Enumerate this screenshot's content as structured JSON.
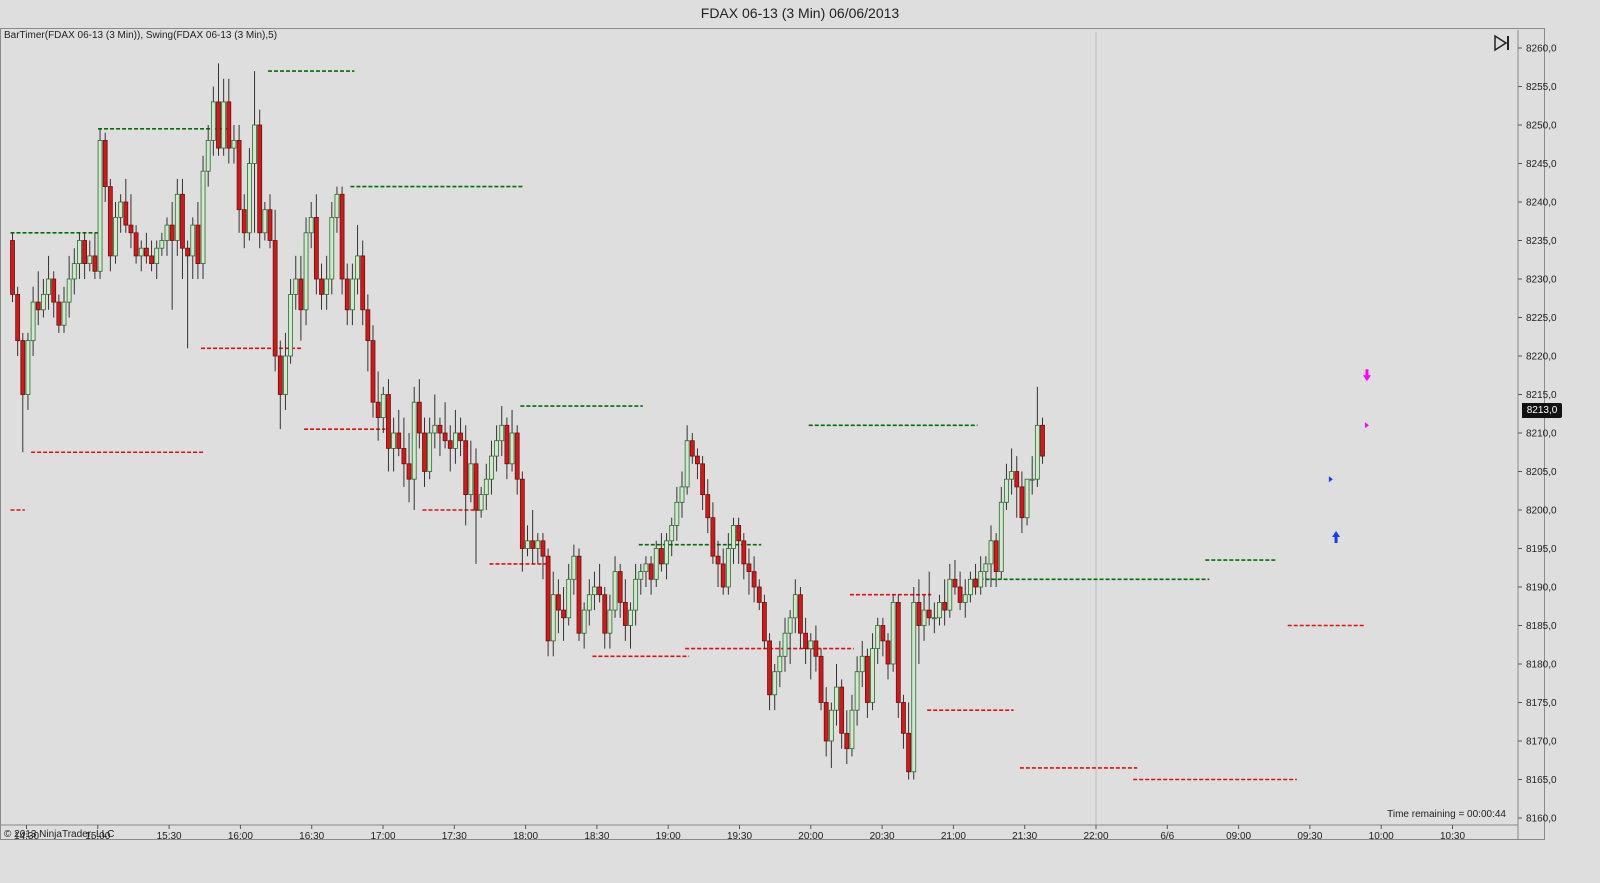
{
  "window": {
    "title": "FDAX 06-13 (3 Min)  06/06/2013"
  },
  "chart": {
    "indicator_label": "BarTimer(FDAX 06-13 (3 Min)), Swing(FDAX 06-13 (3 Min),5)",
    "copyright": "© 2013 NinjaTrader, LLC",
    "time_remaining": "Time remaining = 00:00:44",
    "last_price": "8213,0",
    "scroll_icon": "scroll-to-end-icon"
  },
  "colors": {
    "up_body": "#cfe8cf",
    "down_body": "#c41e1e",
    "wick": "#333333",
    "swing_high": "#007000",
    "swing_low": "#e01010",
    "marker_up": "#1a3cff",
    "marker_down": "#ff00ff"
  },
  "chart_data": {
    "type": "candlestick",
    "title": "FDAX 06-13 (3 Min)  06/06/2013",
    "y_ticks": [
      "8260,0",
      "8255,0",
      "8250,0",
      "8245,0",
      "8240,0",
      "8235,0",
      "8230,0",
      "8225,0",
      "8220,0",
      "8215,0",
      "8210,0",
      "8205,0",
      "8200,0",
      "8195,0",
      "8190,0",
      "8185,0",
      "8180,0",
      "8175,0",
      "8170,0",
      "8165,0",
      "8160,0"
    ],
    "y_values": [
      8260,
      8255,
      8250,
      8245,
      8240,
      8235,
      8230,
      8225,
      8220,
      8215,
      8210,
      8205,
      8200,
      8195,
      8190,
      8185,
      8180,
      8175,
      8170,
      8165,
      8160
    ],
    "ylim": [
      8159.2,
      8262.3
    ],
    "x_ticks": [
      "14:30",
      "15:00",
      "15:30",
      "16:00",
      "16:30",
      "17:00",
      "17:30",
      "18:00",
      "18:30",
      "19:00",
      "19:30",
      "20:00",
      "20:30",
      "21:00",
      "21:30",
      "22:00",
      "6/6",
      "09:00",
      "09:30",
      "10:00",
      "10:30"
    ],
    "swing_highs": [
      {
        "price": 8236.0,
        "from": 0,
        "to": 17
      },
      {
        "price": 8249.5,
        "from": 17,
        "to": 42
      },
      {
        "price": 8257.0,
        "from": 50,
        "to": 66
      },
      {
        "price": 8242.0,
        "from": 66,
        "to": 99
      },
      {
        "price": 8213.5,
        "from": 99,
        "to": 122
      },
      {
        "price": 8195.5,
        "from": 122,
        "to": 145
      },
      {
        "price": 8211.0,
        "from": 155,
        "to": 187
      },
      {
        "price": 8191.0,
        "from": 187,
        "to": 232
      },
      {
        "price": 8193.5,
        "from": 232,
        "to": 245
      }
    ],
    "swing_lows": [
      {
        "price": 8200.0,
        "from": 0,
        "to": 2
      },
      {
        "price": 8207.5,
        "from": 4,
        "to": 37
      },
      {
        "price": 8221.0,
        "from": 37,
        "to": 56
      },
      {
        "price": 8210.5,
        "from": 57,
        "to": 72
      },
      {
        "price": 8200.0,
        "from": 80,
        "to": 91
      },
      {
        "price": 8193.0,
        "from": 93,
        "to": 104
      },
      {
        "price": 8181.0,
        "from": 113,
        "to": 131
      },
      {
        "price": 8182.0,
        "from": 131,
        "to": 163
      },
      {
        "price": 8189.0,
        "from": 163,
        "to": 178
      },
      {
        "price": 8174.0,
        "from": 178,
        "to": 194
      },
      {
        "price": 8166.5,
        "from": 196,
        "to": 218
      },
      {
        "price": 8165.0,
        "from": 218,
        "to": 249
      },
      {
        "price": 8185.0,
        "from": 248,
        "to": 262
      }
    ],
    "markers": [
      {
        "type": "arrow-up",
        "bar": 257,
        "price": 8196.5
      },
      {
        "type": "arrow-down",
        "bar": 263,
        "price": 8217.5
      },
      {
        "type": "triangle-right",
        "bar": 256,
        "price": 8204.0
      },
      {
        "type": "triangle-right",
        "bar": 263,
        "price": 8211.0
      }
    ],
    "candles": [
      [
        8235.0,
        8236.0,
        8227.0,
        8228.0
      ],
      [
        8228.0,
        8229.0,
        8220.0,
        8222.0
      ],
      [
        8222.0,
        8223.0,
        8207.5,
        8215.0
      ],
      [
        8215.0,
        8223.0,
        8213.0,
        8222.0
      ],
      [
        8222.0,
        8229.0,
        8220.0,
        8227.0
      ],
      [
        8227.0,
        8231.0,
        8224.0,
        8226.0
      ],
      [
        8226.0,
        8230.0,
        8225.0,
        8228.0
      ],
      [
        8228.0,
        8233.0,
        8226.0,
        8230.0
      ],
      [
        8230.0,
        8231.0,
        8225.0,
        8227.0
      ],
      [
        8227.0,
        8228.0,
        8223.0,
        8224.0
      ],
      [
        8224.0,
        8229.0,
        8223.0,
        8227.0
      ],
      [
        8227.0,
        8233.0,
        8225.0,
        8230.0
      ],
      [
        8230.0,
        8234.0,
        8228.0,
        8232.0
      ],
      [
        8232.0,
        8236.0,
        8230.0,
        8235.0
      ],
      [
        8235.0,
        8236.0,
        8230.0,
        8232.0
      ],
      [
        8232.0,
        8235.0,
        8231.0,
        8233.0
      ],
      [
        8233.0,
        8236.0,
        8230.0,
        8231.0
      ],
      [
        8231.0,
        8249.5,
        8230.0,
        8248.0
      ],
      [
        8248.0,
        8249.0,
        8240.0,
        8242.0
      ],
      [
        8242.0,
        8243.0,
        8231.0,
        8233.0
      ],
      [
        8233.0,
        8240.0,
        8232.0,
        8238.0
      ],
      [
        8238.0,
        8241.0,
        8236.0,
        8240.0
      ],
      [
        8240.0,
        8243.0,
        8236.0,
        8237.0
      ],
      [
        8237.0,
        8241.0,
        8234.0,
        8236.0
      ],
      [
        8236.0,
        8237.0,
        8232.0,
        8233.0
      ],
      [
        8233.0,
        8235.0,
        8231.0,
        8234.0
      ],
      [
        8234.0,
        8236.0,
        8232.0,
        8233.0
      ],
      [
        8233.0,
        8235.0,
        8231.0,
        8232.0
      ],
      [
        8232.0,
        8235.0,
        8230.0,
        8234.0
      ],
      [
        8234.0,
        8236.0,
        8233.0,
        8235.0
      ],
      [
        8235.0,
        8238.0,
        8233.0,
        8237.0
      ],
      [
        8237.0,
        8240.0,
        8226.0,
        8235.0
      ],
      [
        8235.0,
        8243.0,
        8233.0,
        8241.0
      ],
      [
        8241.0,
        8243.0,
        8230.0,
        8234.0
      ],
      [
        8234.0,
        8235.0,
        8221.0,
        8233.0
      ],
      [
        8233.0,
        8238.0,
        8230.0,
        8237.0
      ],
      [
        8237.0,
        8240.0,
        8230.0,
        8232.0
      ],
      [
        8232.0,
        8246.0,
        8230.0,
        8244.0
      ],
      [
        8244.0,
        8250.0,
        8242.0,
        8248.0
      ],
      [
        8248.0,
        8255.0,
        8246.0,
        8253.0
      ],
      [
        8253.0,
        8258.0,
        8246.0,
        8247.0
      ],
      [
        8247.0,
        8256.0,
        8246.0,
        8253.0
      ],
      [
        8253.0,
        8256.0,
        8245.0,
        8247.0
      ],
      [
        8247.0,
        8250.0,
        8245.0,
        8248.0
      ],
      [
        8248.0,
        8250.0,
        8236.0,
        8239.0
      ],
      [
        8239.0,
        8241.0,
        8234.0,
        8236.0
      ],
      [
        8236.0,
        8247.0,
        8235.0,
        8245.0
      ],
      [
        8245.0,
        8257.0,
        8236.0,
        8250.0
      ],
      [
        8250.0,
        8252.0,
        8234.0,
        8236.0
      ],
      [
        8236.0,
        8240.0,
        8235.0,
        8239.0
      ],
      [
        8239.0,
        8241.0,
        8234.0,
        8235.0
      ],
      [
        8235.0,
        8239.0,
        8218.0,
        8220.0
      ],
      [
        8220.0,
        8222.0,
        8210.5,
        8215.0
      ],
      [
        8215.0,
        8223.0,
        8213.0,
        8220.0
      ],
      [
        8220.0,
        8230.0,
        8219.0,
        8228.0
      ],
      [
        8228.0,
        8233.0,
        8226.0,
        8230.0
      ],
      [
        8230.0,
        8233.0,
        8222.0,
        8226.0
      ],
      [
        8226.0,
        8238.0,
        8224.0,
        8236.0
      ],
      [
        8236.0,
        8240.0,
        8234.0,
        8238.0
      ],
      [
        8238.0,
        8241.0,
        8228.0,
        8230.0
      ],
      [
        8230.0,
        8232.0,
        8226.0,
        8228.0
      ],
      [
        8228.0,
        8233.0,
        8226.0,
        8230.0
      ],
      [
        8230.0,
        8240.0,
        8228.0,
        8238.0
      ],
      [
        8238.0,
        8242.0,
        8236.0,
        8241.0
      ],
      [
        8241.0,
        8242.0,
        8228.0,
        8230.0
      ],
      [
        8230.0,
        8232.0,
        8224.0,
        8226.0
      ],
      [
        8226.0,
        8232.0,
        8224.0,
        8230.0
      ],
      [
        8230.0,
        8237.0,
        8228.0,
        8233.0
      ],
      [
        8233.0,
        8235.0,
        8224.0,
        8226.0
      ],
      [
        8226.0,
        8228.0,
        8218.0,
        8222.0
      ],
      [
        8222.0,
        8224.0,
        8212.0,
        8214.0
      ],
      [
        8214.0,
        8218.0,
        8209.0,
        8212.0
      ],
      [
        8212.0,
        8216.0,
        8210.0,
        8215.0
      ],
      [
        8215.0,
        8217.0,
        8205.0,
        8208.0
      ],
      [
        8208.0,
        8212.0,
        8205.0,
        8210.0
      ],
      [
        8210.0,
        8213.0,
        8207.0,
        8208.0
      ],
      [
        8208.0,
        8212.0,
        8203.0,
        8206.0
      ],
      [
        8206.0,
        8210.0,
        8201.0,
        8204.0
      ],
      [
        8204.0,
        8216.0,
        8200.0,
        8214.0
      ],
      [
        8214.0,
        8217.0,
        8208.0,
        8210.0
      ],
      [
        8210.0,
        8212.0,
        8203.0,
        8205.0
      ],
      [
        8205.0,
        8212.0,
        8204.0,
        8210.0
      ],
      [
        8210.0,
        8215.0,
        8208.0,
        8211.0
      ],
      [
        8211.0,
        8212.0,
        8207.0,
        8210.0
      ],
      [
        8210.0,
        8214.0,
        8208.0,
        8209.0
      ],
      [
        8209.0,
        8211.0,
        8205.0,
        8208.0
      ],
      [
        8208.0,
        8213.0,
        8206.0,
        8210.0
      ],
      [
        8210.0,
        8212.0,
        8207.0,
        8209.0
      ],
      [
        8209.0,
        8211.0,
        8198.0,
        8202.0
      ],
      [
        8202.0,
        8209.0,
        8201.0,
        8206.0
      ],
      [
        8206.0,
        8208.0,
        8193.0,
        8200.0
      ],
      [
        8200.0,
        8203.0,
        8199.0,
        8202.0
      ],
      [
        8202.0,
        8206.0,
        8200.0,
        8204.0
      ],
      [
        8204.0,
        8209.0,
        8202.0,
        8207.0
      ],
      [
        8207.0,
        8211.0,
        8205.0,
        8209.0
      ],
      [
        8209.0,
        8213.5,
        8207.0,
        8211.0
      ],
      [
        8211.0,
        8212.0,
        8204.0,
        8206.0
      ],
      [
        8206.0,
        8213.0,
        8205.0,
        8210.0
      ],
      [
        8210.0,
        8211.0,
        8202.0,
        8204.0
      ],
      [
        8204.0,
        8205.0,
        8192.0,
        8195.0
      ],
      [
        8195.0,
        8198.0,
        8194.0,
        8196.0
      ],
      [
        8196.0,
        8200.0,
        8193.0,
        8195.0
      ],
      [
        8195.0,
        8197.0,
        8193.0,
        8196.0
      ],
      [
        8196.0,
        8197.0,
        8191.0,
        8194.0
      ],
      [
        8194.0,
        8195.0,
        8181.0,
        8183.0
      ],
      [
        8183.0,
        8192.0,
        8181.0,
        8189.0
      ],
      [
        8189.0,
        8191.0,
        8184.0,
        8187.0
      ],
      [
        8187.0,
        8190.0,
        8183.0,
        8186.0
      ],
      [
        8186.0,
        8193.0,
        8185.0,
        8191.0
      ],
      [
        8191.0,
        8195.5,
        8189.0,
        8194.0
      ],
      [
        8194.0,
        8195.0,
        8183.0,
        8184.0
      ],
      [
        8184.0,
        8188.0,
        8182.0,
        8187.0
      ],
      [
        8187.0,
        8191.0,
        8185.0,
        8189.0
      ],
      [
        8189.0,
        8192.0,
        8187.0,
        8190.0
      ],
      [
        8190.0,
        8193.0,
        8188.0,
        8189.0
      ],
      [
        8189.0,
        8190.0,
        8182.0,
        8184.0
      ],
      [
        8184.0,
        8189.0,
        8182.0,
        8187.0
      ],
      [
        8187.0,
        8194.0,
        8186.0,
        8192.0
      ],
      [
        8192.0,
        8193.0,
        8186.0,
        8188.0
      ],
      [
        8188.0,
        8191.0,
        8183.0,
        8185.0
      ],
      [
        8185.0,
        8188.0,
        8182.0,
        8187.0
      ],
      [
        8187.0,
        8193.0,
        8185.0,
        8191.0
      ],
      [
        8191.0,
        8193.0,
        8189.0,
        8192.0
      ],
      [
        8192.0,
        8194.0,
        8190.0,
        8193.0
      ],
      [
        8193.0,
        8194.0,
        8189.0,
        8191.0
      ],
      [
        8191.0,
        8196.0,
        8190.0,
        8195.0
      ],
      [
        8195.0,
        8197.0,
        8192.0,
        8193.0
      ],
      [
        8193.0,
        8197.0,
        8191.0,
        8196.0
      ],
      [
        8196.0,
        8199.0,
        8194.0,
        8198.0
      ],
      [
        8198.0,
        8203.0,
        8196.0,
        8201.0
      ],
      [
        8201.0,
        8205.0,
        8199.0,
        8203.0
      ],
      [
        8203.0,
        8211.0,
        8202.0,
        8209.0
      ],
      [
        8209.0,
        8210.0,
        8206.0,
        8207.0
      ],
      [
        8207.0,
        8208.0,
        8204.0,
        8206.0
      ],
      [
        8206.0,
        8207.0,
        8200.0,
        8202.0
      ],
      [
        8202.0,
        8204.0,
        8197.0,
        8199.0
      ],
      [
        8199.0,
        8201.0,
        8193.0,
        8194.0
      ],
      [
        8194.0,
        8196.0,
        8190.0,
        8193.0
      ],
      [
        8193.0,
        8195.0,
        8189.0,
        8190.0
      ],
      [
        8190.0,
        8197.0,
        8189.0,
        8195.0
      ],
      [
        8195.0,
        8199.0,
        8193.0,
        8198.0
      ],
      [
        8198.0,
        8199.0,
        8193.0,
        8196.0
      ],
      [
        8196.0,
        8197.0,
        8191.0,
        8193.0
      ],
      [
        8193.0,
        8195.0,
        8189.0,
        8192.0
      ],
      [
        8192.0,
        8194.0,
        8188.0,
        8190.0
      ],
      [
        8190.0,
        8191.0,
        8187.0,
        8188.0
      ],
      [
        8188.0,
        8189.0,
        8182.0,
        8183.0
      ],
      [
        8183.0,
        8184.0,
        8174.0,
        8176.0
      ],
      [
        8176.0,
        8180.0,
        8174.0,
        8179.0
      ],
      [
        8179.0,
        8183.0,
        8177.0,
        8181.0
      ],
      [
        8181.0,
        8186.0,
        8179.0,
        8184.0
      ],
      [
        8184.0,
        8187.0,
        8180.0,
        8186.0
      ],
      [
        8186.0,
        8191.0,
        8184.0,
        8189.0
      ],
      [
        8189.0,
        8190.0,
        8182.0,
        8184.0
      ],
      [
        8184.0,
        8186.0,
        8180.0,
        8182.0
      ],
      [
        8182.0,
        8184.0,
        8178.0,
        8183.0
      ],
      [
        8183.0,
        8185.0,
        8179.0,
        8181.0
      ],
      [
        8181.0,
        8182.0,
        8174.0,
        8175.0
      ],
      [
        8175.0,
        8177.0,
        8168.0,
        8170.0
      ],
      [
        8170.0,
        8175.0,
        8166.5,
        8174.0
      ],
      [
        8174.0,
        8180.0,
        8172.0,
        8177.0
      ],
      [
        8177.0,
        8178.0,
        8169.0,
        8171.0
      ],
      [
        8171.0,
        8174.0,
        8167.0,
        8169.0
      ],
      [
        8169.0,
        8176.0,
        8168.0,
        8174.0
      ],
      [
        8174.0,
        8181.0,
        8172.0,
        8179.0
      ],
      [
        8179.0,
        8183.0,
        8177.0,
        8181.0
      ],
      [
        8181.0,
        8182.0,
        8173.0,
        8175.0
      ],
      [
        8175.0,
        8184.0,
        8174.0,
        8182.0
      ],
      [
        8182.0,
        8186.0,
        8180.0,
        8185.0
      ],
      [
        8185.0,
        8186.0,
        8181.0,
        8183.0
      ],
      [
        8183.0,
        8184.0,
        8178.0,
        8180.0
      ],
      [
        8180.0,
        8189.0,
        8179.0,
        8188.0
      ],
      [
        8188.0,
        8189.0,
        8173.0,
        8175.0
      ],
      [
        8175.0,
        8176.0,
        8169.0,
        8171.0
      ],
      [
        8171.0,
        8175.0,
        8165.0,
        8166.0
      ],
      [
        8166.0,
        8190.0,
        8165.0,
        8188.0
      ],
      [
        8188.0,
        8191.0,
        8180.0,
        8185.0
      ],
      [
        8185.0,
        8189.0,
        8183.0,
        8187.0
      ],
      [
        8187.0,
        8192.0,
        8185.0,
        8186.0
      ],
      [
        8186.0,
        8188.0,
        8184.0,
        8186.0
      ],
      [
        8186.0,
        8189.0,
        8185.0,
        8188.0
      ],
      [
        8188.0,
        8191.0,
        8185.0,
        8187.0
      ],
      [
        8187.0,
        8193.0,
        8186.0,
        8191.0
      ],
      [
        8191.0,
        8193.5,
        8189.0,
        8190.0
      ],
      [
        8190.0,
        8192.0,
        8187.0,
        8188.0
      ],
      [
        8188.0,
        8191.0,
        8186.0,
        8189.0
      ],
      [
        8189.0,
        8192.0,
        8188.0,
        8191.0
      ],
      [
        8191.0,
        8193.0,
        8189.0,
        8190.0
      ],
      [
        8190.0,
        8194.0,
        8189.0,
        8192.0
      ],
      [
        8192.0,
        8194.0,
        8190.0,
        8193.0
      ],
      [
        8193.0,
        8198.0,
        8190.0,
        8196.0
      ],
      [
        8196.0,
        8197.0,
        8190.0,
        8192.0
      ],
      [
        8192.0,
        8203.0,
        8191.0,
        8201.0
      ],
      [
        8201.0,
        8206.0,
        8200.0,
        8204.0
      ],
      [
        8204.0,
        8208.0,
        8202.0,
        8205.0
      ],
      [
        8205.0,
        8207.0,
        8199.0,
        8203.0
      ],
      [
        8203.0,
        8205.0,
        8197.0,
        8199.0
      ],
      [
        8199.0,
        8204.0,
        8198.0,
        8204.0
      ],
      [
        8204.0,
        8207.0,
        8202.0,
        8204.0
      ],
      [
        8204.0,
        8216.0,
        8203.0,
        8211.0
      ],
      [
        8211.0,
        8212.0,
        8206.0,
        8207.0
      ]
    ]
  }
}
